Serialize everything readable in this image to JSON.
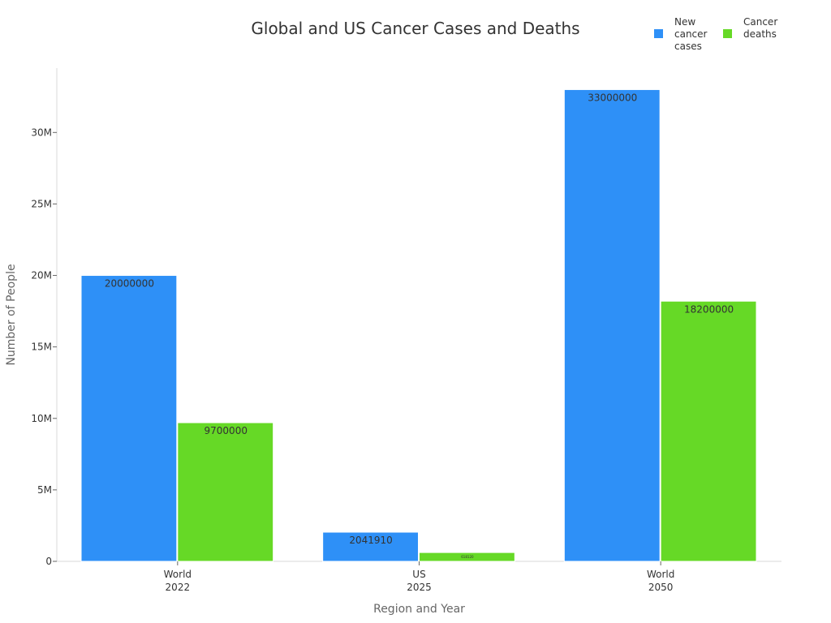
{
  "chart_data": {
    "type": "bar",
    "title": "Global and US Cancer Cases and Deaths",
    "xlabel": "Region and Year",
    "ylabel": "Number of People",
    "categories": [
      [
        "World",
        "2022"
      ],
      [
        "US",
        "2025"
      ],
      [
        "World",
        "2050"
      ]
    ],
    "series": [
      {
        "name": "New cancer cases",
        "legend_lines": [
          "New",
          "cancer",
          "cases"
        ],
        "color": "#2e90f7",
        "values": [
          20000000,
          2041910,
          33000000
        ]
      },
      {
        "name": "Cancer deaths",
        "legend_lines": [
          "Cancer",
          "deaths"
        ],
        "color": "#66d926",
        "values": [
          9700000,
          618120,
          18200000
        ]
      }
    ],
    "ylim": [
      0,
      34500000
    ],
    "yticks": [
      0,
      5000000,
      10000000,
      15000000,
      20000000,
      25000000,
      30000000
    ],
    "ytick_labels": [
      "0",
      "5M",
      "10M",
      "15M",
      "20M",
      "25M",
      "30M"
    ],
    "data_labels": [
      [
        "20000000",
        "2041910",
        "33000000"
      ],
      [
        "9700000",
        "618120",
        "18200000"
      ]
    ],
    "legend_position": "top-right",
    "grid": false
  }
}
